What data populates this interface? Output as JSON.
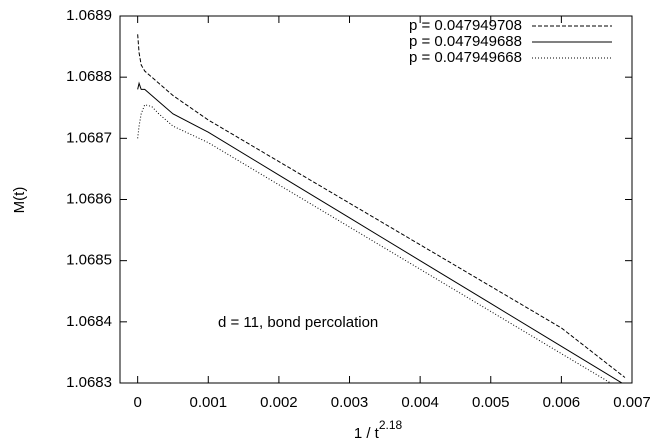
{
  "chart_data": {
    "type": "line",
    "ylabel": "M(t)",
    "xlabel": {
      "base": "1 / t",
      "exponent": "2.18"
    },
    "annotation": "d = 11,  bond percolation",
    "xlim": [
      -0.00025,
      0.007
    ],
    "ylim": [
      1.0683,
      1.0689
    ],
    "xticks": [
      0,
      0.001,
      0.002,
      0.003,
      0.004,
      0.005,
      0.006,
      0.007
    ],
    "yticks": [
      1.0683,
      1.0684,
      1.0685,
      1.0686,
      1.0687,
      1.0688,
      1.0689
    ],
    "grid": false,
    "legend": "top-right",
    "x": [
      0,
      2e-05,
      5e-05,
      0.0001,
      0.0002,
      0.0003,
      0.0005,
      0.001,
      0.002,
      0.003,
      0.004,
      0.005,
      0.006,
      0.0069
    ],
    "series": [
      {
        "name": "p = 0.047949708",
        "color": "#000000",
        "dash": "4,2",
        "values": [
          1.06887,
          1.06884,
          1.06882,
          1.06881,
          1.0688,
          1.06879,
          1.06877,
          1.06873,
          1.068662,
          1.068594,
          1.068526,
          1.068458,
          1.06839,
          1.068309
        ]
      },
      {
        "name": "p = 0.047949688",
        "color": "#000000",
        "dash": "none",
        "values": [
          1.06878,
          1.06879,
          1.06878,
          1.06878,
          1.06877,
          1.06876,
          1.06874,
          1.06871,
          1.06864,
          1.06857,
          1.0685,
          1.06843,
          1.06836,
          1.068297
        ]
      },
      {
        "name": "p = 0.047949668",
        "color": "#000000",
        "dash": "1,2",
        "values": [
          1.0687,
          1.06872,
          1.06874,
          1.068755,
          1.068752,
          1.06874,
          1.06872,
          1.068693,
          1.068624,
          1.068555,
          1.068486,
          1.068417,
          1.068348,
          1.068286
        ]
      }
    ]
  }
}
